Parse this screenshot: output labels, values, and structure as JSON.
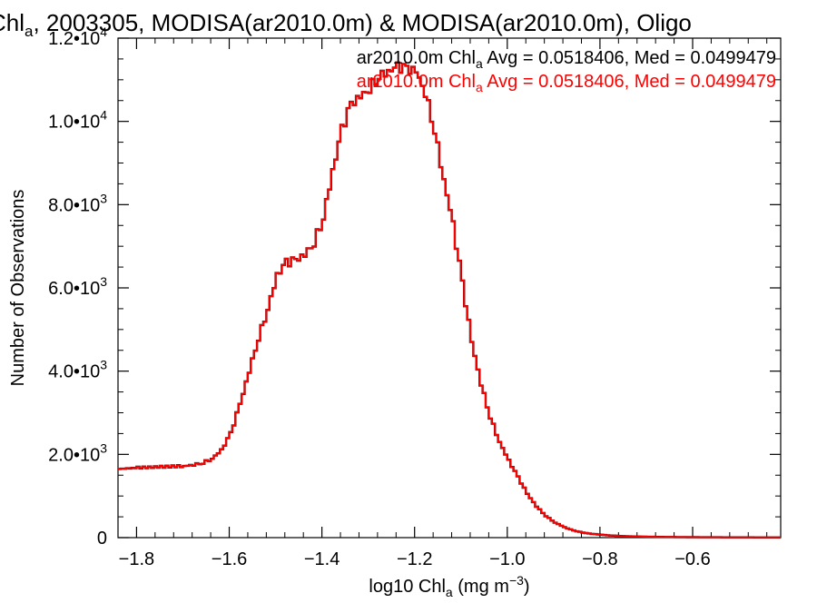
{
  "chart_data": {
    "type": "line",
    "title": {
      "prefix": "Chl",
      "sub": "a",
      "suffix": ", 2003305, MODISA(ar2010.0m) & MODISA(ar2010.0m), Oligo"
    },
    "xlabel": {
      "prefix": "log10 Chl",
      "sub": "a",
      "middle": " (mg m",
      "sup": "−3",
      "suffix": ")"
    },
    "ylabel": "Number of Observations",
    "xlim": [
      -1.84,
      -0.41
    ],
    "ylim": [
      0,
      12000
    ],
    "x_ticks": [
      {
        "value": -1.8,
        "label": "−1.8"
      },
      {
        "value": -1.6,
        "label": "−1.6"
      },
      {
        "value": -1.4,
        "label": "−1.4"
      },
      {
        "value": -1.2,
        "label": "−1.2"
      },
      {
        "value": -1.0,
        "label": "−1.0"
      },
      {
        "value": -0.8,
        "label": "−0.8"
      },
      {
        "value": -0.6,
        "label": "−0.6"
      }
    ],
    "y_ticks": [
      {
        "value": 0,
        "mant": "0",
        "exp": ""
      },
      {
        "value": 2000,
        "mant": "2.0•10",
        "exp": "3"
      },
      {
        "value": 4000,
        "mant": "4.0•10",
        "exp": "3"
      },
      {
        "value": 6000,
        "mant": "6.0•10",
        "exp": "3"
      },
      {
        "value": 8000,
        "mant": "8.0•10",
        "exp": "3"
      },
      {
        "value": 10000,
        "mant": "1.0•10",
        "exp": "4"
      },
      {
        "value": 12000,
        "mant": "1.2•10",
        "exp": "4"
      }
    ],
    "legend_placement": "top-right",
    "series": [
      {
        "name": "ar2010.0m Chl_a Avg = 0.0518406, Med = 0.0499479",
        "legend": {
          "prefix": "ar2010.0m Chl",
          "sub": "a",
          "suffix": " Avg = 0.0518406, Med = 0.0499479"
        },
        "color": "#000000",
        "x": [
          -1.84,
          -1.8,
          -1.75,
          -1.7,
          -1.68,
          -1.66,
          -1.64,
          -1.62,
          -1.6,
          -1.58,
          -1.56,
          -1.54,
          -1.52,
          -1.5,
          -1.48,
          -1.46,
          -1.44,
          -1.42,
          -1.4,
          -1.38,
          -1.36,
          -1.34,
          -1.32,
          -1.3,
          -1.28,
          -1.26,
          -1.24,
          -1.22,
          -1.2,
          -1.18,
          -1.16,
          -1.14,
          -1.12,
          -1.1,
          -1.08,
          -1.06,
          -1.04,
          -1.02,
          -1.0,
          -0.98,
          -0.96,
          -0.94,
          -0.92,
          -0.9,
          -0.88,
          -0.86,
          -0.84,
          -0.82,
          -0.8,
          -0.78,
          -0.76,
          -0.74,
          -0.72,
          -0.7,
          -0.65,
          -0.6,
          -0.55,
          -0.5,
          -0.45,
          -0.41
        ],
        "values": [
          1650,
          1680,
          1700,
          1720,
          1750,
          1800,
          1900,
          2100,
          2500,
          3200,
          4000,
          4800,
          5500,
          6300,
          6600,
          6650,
          6800,
          7100,
          7700,
          8800,
          9800,
          10400,
          10600,
          10800,
          11100,
          11200,
          11300,
          11250,
          11200,
          10700,
          9800,
          8600,
          7500,
          6100,
          4700,
          3700,
          2900,
          2300,
          1850,
          1450,
          1050,
          750,
          520,
          360,
          250,
          170,
          120,
          90,
          70,
          50,
          40,
          30,
          25,
          20,
          15,
          10,
          8,
          6,
          5,
          4
        ]
      },
      {
        "name": "ar2010.0m Chl_a Avg = 0.0518406, Med = 0.0499479",
        "legend": {
          "prefix": "ar2010.0m Chl",
          "sub": "a",
          "suffix": " Avg = 0.0518406, Med = 0.0499479"
        },
        "color": "#ff0000",
        "x": [
          -1.84,
          -1.8,
          -1.75,
          -1.7,
          -1.68,
          -1.66,
          -1.64,
          -1.62,
          -1.6,
          -1.58,
          -1.56,
          -1.54,
          -1.52,
          -1.5,
          -1.48,
          -1.46,
          -1.44,
          -1.42,
          -1.4,
          -1.38,
          -1.36,
          -1.34,
          -1.32,
          -1.3,
          -1.28,
          -1.26,
          -1.24,
          -1.22,
          -1.2,
          -1.18,
          -1.16,
          -1.14,
          -1.12,
          -1.1,
          -1.08,
          -1.06,
          -1.04,
          -1.02,
          -1.0,
          -0.98,
          -0.96,
          -0.94,
          -0.92,
          -0.9,
          -0.88,
          -0.86,
          -0.84,
          -0.82,
          -0.8,
          -0.78,
          -0.76,
          -0.74,
          -0.72,
          -0.7,
          -0.65,
          -0.6,
          -0.55,
          -0.5,
          -0.45,
          -0.41
        ],
        "values": [
          1650,
          1680,
          1700,
          1720,
          1750,
          1800,
          1900,
          2100,
          2500,
          3200,
          4000,
          4800,
          5500,
          6300,
          6600,
          6650,
          6800,
          7100,
          7700,
          8800,
          9800,
          10400,
          10600,
          10800,
          11100,
          11200,
          11300,
          11250,
          11200,
          10700,
          9800,
          8600,
          7500,
          6100,
          4700,
          3700,
          2900,
          2300,
          1850,
          1450,
          1050,
          750,
          520,
          360,
          250,
          170,
          120,
          90,
          70,
          50,
          40,
          30,
          25,
          20,
          15,
          10,
          8,
          6,
          5,
          4
        ]
      }
    ]
  }
}
